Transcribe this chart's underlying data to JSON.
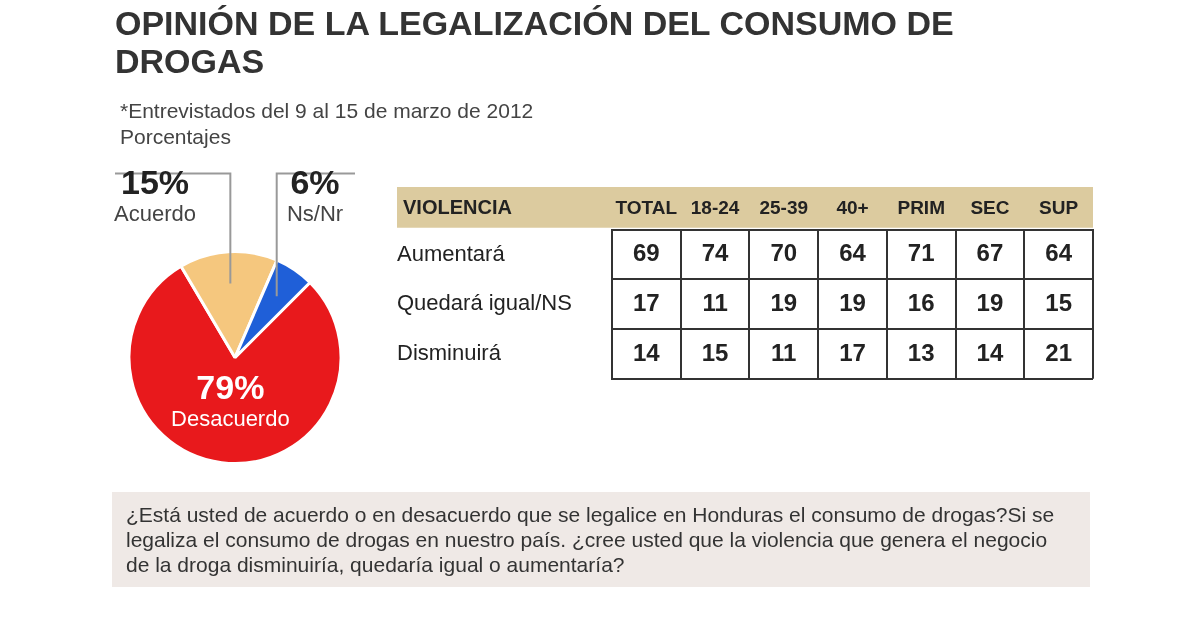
{
  "chart_data": [
    {
      "type": "pie",
      "title": "OPINIÓN DE LA LEGALIZACIÓN DEL CONSUMO DE DROGAS",
      "subtitle": "*Entrevistados del 9 al 15 de marzo de 2012\nPorcentajes",
      "categories": [
        "Desacuerdo",
        "Acuerdo",
        "Ns/Nr"
      ],
      "values": [
        79,
        15,
        6
      ],
      "value_labels": [
        "79%",
        "15%",
        "6%"
      ],
      "colors": [
        "#e8191c",
        "#f5c77e",
        "#1f5fd8"
      ],
      "legend": false,
      "annotations": [
        "¿Está usted de acuerdo o en desacuerdo que se legalice en Honduras el consumo de drogas?Si se legaliza el consumo de drogas en nuestro país. ¿cree usted que la violencia que genera el negocio de la droga disminuiría, quedaría igual o aumentaría?"
      ]
    },
    {
      "type": "heatmap",
      "ylabel": "VIOLENCIA",
      "categories": [
        "TOTAL",
        "18-24",
        "25-39",
        "40+",
        "PRIM",
        "SEC",
        "SUP"
      ],
      "y_categories": [
        "Aumentará",
        "Quedará igual/NS",
        "Disminuirá"
      ],
      "cells": [
        [
          69,
          74,
          70,
          64,
          71,
          67,
          64
        ],
        [
          17,
          11,
          19,
          19,
          16,
          19,
          15
        ],
        [
          14,
          15,
          11,
          17,
          13,
          14,
          21
        ]
      ],
      "data_labels": true
    }
  ]
}
